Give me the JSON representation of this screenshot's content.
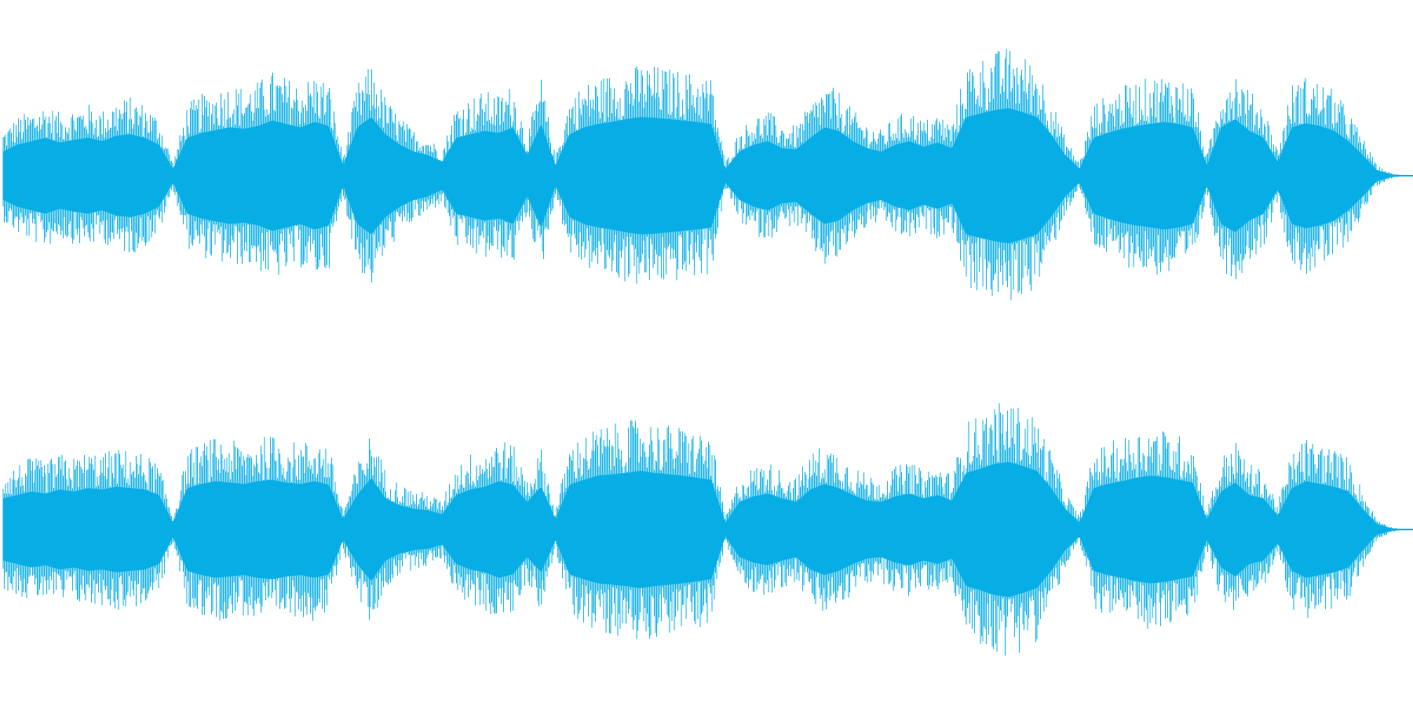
{
  "waveform": {
    "color": "#07aee5",
    "background": "#ffffff",
    "channels": [
      {
        "channel": "top",
        "amplitude_envelope": [
          0.35,
          0.45,
          0.5,
          0.55,
          0.48,
          0.52,
          0.55,
          0.5,
          0.58,
          0.6,
          0.55,
          0.45,
          0.1,
          0.55,
          0.62,
          0.66,
          0.7,
          0.68,
          0.72,
          0.8,
          0.75,
          0.7,
          0.78,
          0.72,
          0.15,
          0.7,
          0.85,
          0.6,
          0.45,
          0.35,
          0.3,
          0.2,
          0.55,
          0.6,
          0.65,
          0.62,
          0.7,
          0.3,
          0.75,
          0.15,
          0.6,
          0.7,
          0.75,
          0.78,
          0.82,
          0.85,
          0.84,
          0.82,
          0.8,
          0.78,
          0.75,
          0.1,
          0.35,
          0.45,
          0.5,
          0.4,
          0.38,
          0.55,
          0.7,
          0.65,
          0.5,
          0.4,
          0.35,
          0.45,
          0.5,
          0.42,
          0.48,
          0.4,
          0.85,
          0.9,
          0.95,
          0.98,
          0.92,
          0.85,
          0.6,
          0.3,
          0.1,
          0.55,
          0.62,
          0.68,
          0.72,
          0.75,
          0.78,
          0.75,
          0.7,
          0.15,
          0.7,
          0.82,
          0.65,
          0.55,
          0.2,
          0.7,
          0.76,
          0.72,
          0.65,
          0.5,
          0.3,
          0.08,
          0.02,
          0.0
        ]
      },
      {
        "channel": "bottom",
        "amplitude_envelope": [
          0.45,
          0.5,
          0.55,
          0.52,
          0.58,
          0.55,
          0.6,
          0.58,
          0.62,
          0.6,
          0.58,
          0.5,
          0.1,
          0.6,
          0.66,
          0.7,
          0.68,
          0.66,
          0.7,
          0.72,
          0.68,
          0.66,
          0.7,
          0.65,
          0.15,
          0.5,
          0.75,
          0.45,
          0.35,
          0.3,
          0.28,
          0.22,
          0.5,
          0.58,
          0.62,
          0.7,
          0.65,
          0.4,
          0.62,
          0.15,
          0.65,
          0.72,
          0.78,
          0.8,
          0.82,
          0.85,
          0.82,
          0.8,
          0.78,
          0.75,
          0.72,
          0.1,
          0.4,
          0.48,
          0.52,
          0.45,
          0.4,
          0.58,
          0.66,
          0.6,
          0.5,
          0.42,
          0.4,
          0.48,
          0.52,
          0.45,
          0.5,
          0.42,
          0.82,
          0.88,
          0.95,
          0.98,
          0.92,
          0.85,
          0.6,
          0.3,
          0.1,
          0.6,
          0.66,
          0.7,
          0.75,
          0.78,
          0.76,
          0.72,
          0.68,
          0.15,
          0.55,
          0.68,
          0.5,
          0.45,
          0.2,
          0.6,
          0.7,
          0.66,
          0.62,
          0.55,
          0.3,
          0.08,
          0.02,
          0.0
        ]
      }
    ]
  }
}
